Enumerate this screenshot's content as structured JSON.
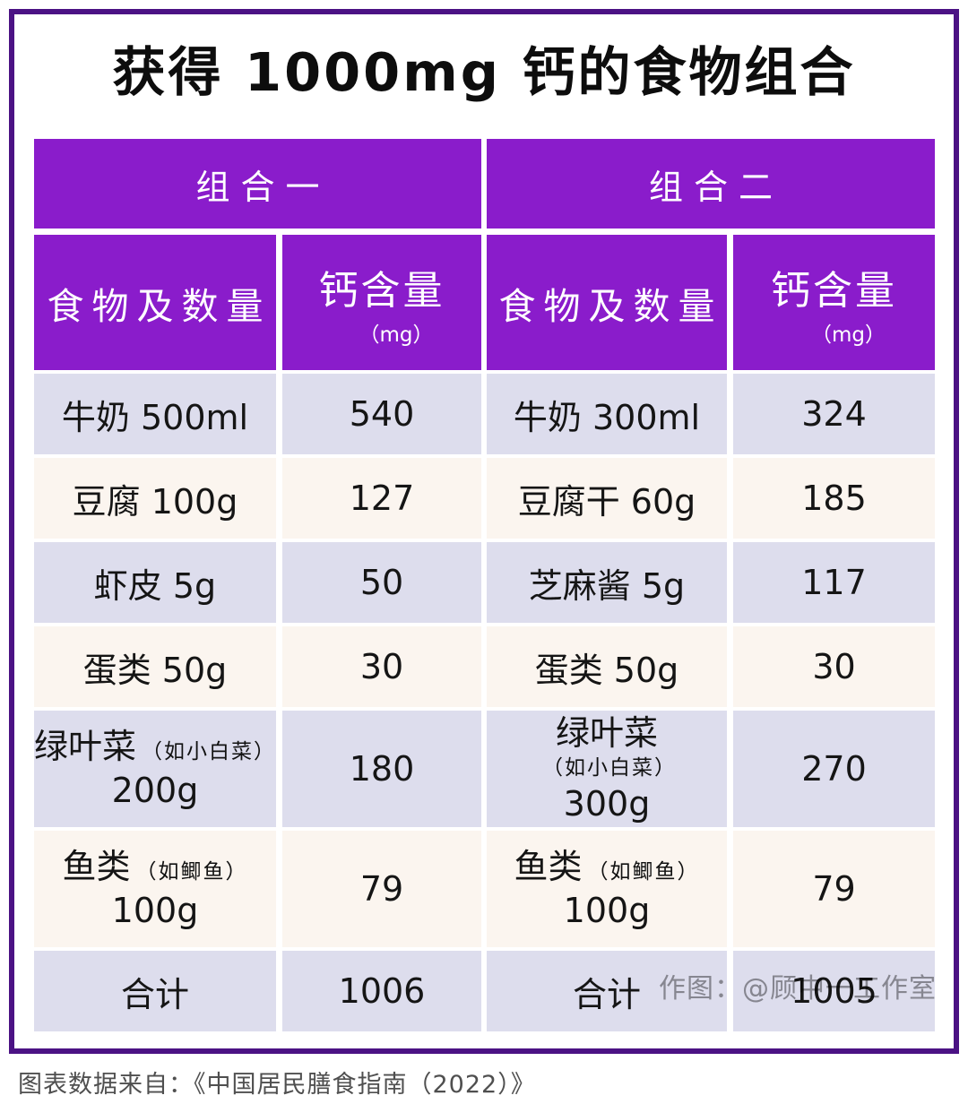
{
  "title": "获得 1000mg 钙的食物组合",
  "watermark": "作图：@顾中一工作室",
  "source_note": "图表数据来自：《中国居民膳食指南（2022）》",
  "colors": {
    "header_purple": "#8A1CCB",
    "frame_purple": "#4B1284",
    "row_lavender": "#DDDDED",
    "row_cream": "#FBF5EF",
    "watermark_gray": "#9B9B9B"
  },
  "groups": [
    {
      "header": "组合一",
      "col_food": "食物及数量",
      "col_calcium": "钙含量",
      "col_calcium_unit": "（mg）",
      "rows": [
        {
          "food": "牛奶 500ml",
          "value": "540"
        },
        {
          "food": "豆腐 100g",
          "value": "127"
        },
        {
          "food": "虾皮 5g",
          "value": "50"
        },
        {
          "food": "蛋类 50g",
          "value": "30"
        },
        {
          "food_main": "绿叶菜",
          "food_note": "（如小白菜）",
          "food_qty": "200g",
          "value": "180"
        },
        {
          "food_main": "鱼类",
          "food_note": "（如鲫鱼）",
          "food_qty": "100g",
          "value": "79"
        },
        {
          "food": "合计",
          "value": "1006"
        }
      ]
    },
    {
      "header": "组合二",
      "col_food": "食物及数量",
      "col_calcium": "钙含量",
      "col_calcium_unit": "（mg）",
      "rows": [
        {
          "food": "牛奶 300ml",
          "value": "324"
        },
        {
          "food": "豆腐干 60g",
          "value": "185"
        },
        {
          "food": "芝麻酱 5g",
          "value": "117"
        },
        {
          "food": "蛋类 50g",
          "value": "30"
        },
        {
          "food_main": "绿叶菜",
          "food_note": "（如小白菜）",
          "food_qty": "300g",
          "value": "270"
        },
        {
          "food_main": "鱼类",
          "food_note": "（如鲫鱼）",
          "food_qty": "100g",
          "value": "79"
        },
        {
          "food": "合计",
          "value": "1005"
        }
      ]
    }
  ],
  "chart_data": {
    "type": "table",
    "title": "获得 1000mg 钙的食物组合",
    "tables": [
      {
        "name": "组合一",
        "columns": [
          "食物及数量",
          "钙含量（mg）"
        ],
        "rows": [
          [
            "牛奶 500ml",
            540
          ],
          [
            "豆腐 100g",
            127
          ],
          [
            "虾皮 5g",
            50
          ],
          [
            "蛋类 50g",
            30
          ],
          [
            "绿叶菜（如小白菜）200g",
            180
          ],
          [
            "鱼类（如鲫鱼）100g",
            79
          ],
          [
            "合计",
            1006
          ]
        ]
      },
      {
        "name": "组合二",
        "columns": [
          "食物及数量",
          "钙含量（mg）"
        ],
        "rows": [
          [
            "牛奶 300ml",
            324
          ],
          [
            "豆腐干 60g",
            185
          ],
          [
            "芝麻酱 5g",
            117
          ],
          [
            "蛋类 50g",
            30
          ],
          [
            "绿叶菜（如小白菜）300g",
            270
          ],
          [
            "鱼类（如鲫鱼）100g",
            79
          ],
          [
            "合计",
            1005
          ]
        ]
      }
    ]
  }
}
